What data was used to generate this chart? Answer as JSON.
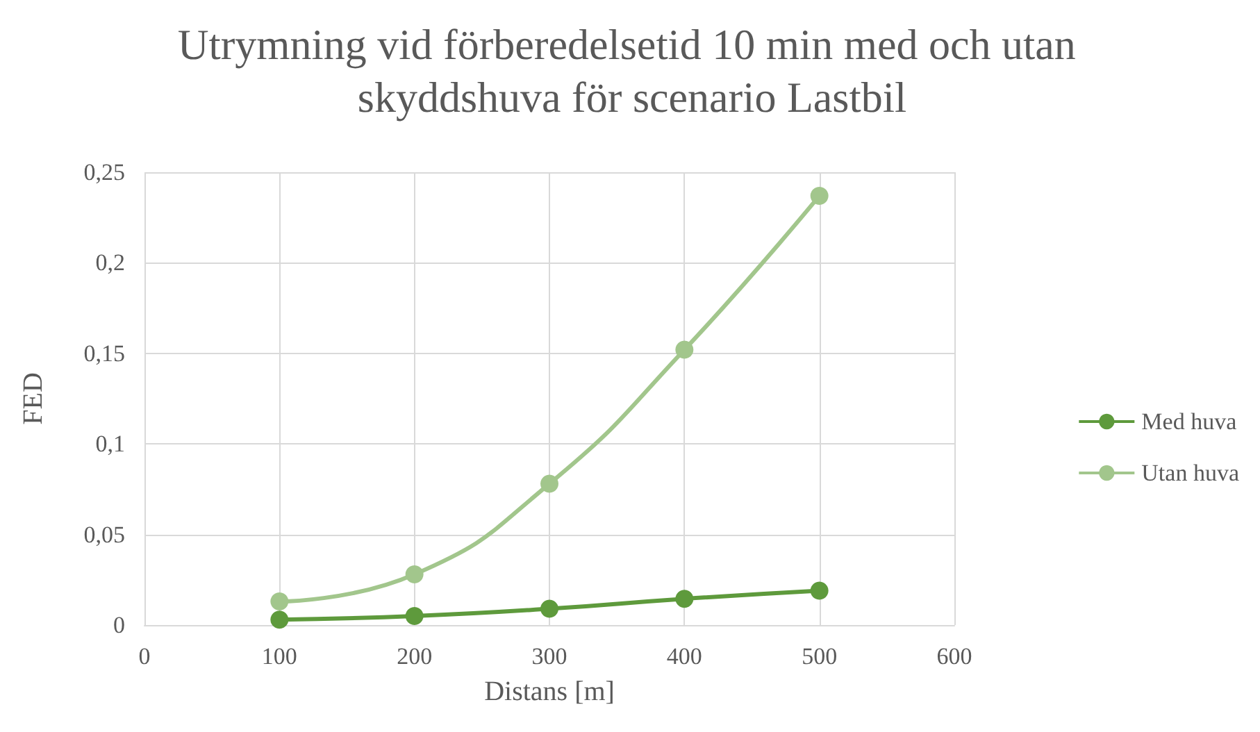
{
  "chart_data": {
    "type": "line",
    "title": "Utrymning vid förberedelsetid 10 min med och utan skyddshuva för scenario Lastbil",
    "xlabel": "Distans [m]",
    "ylabel": "FED",
    "x": [
      100,
      200,
      300,
      400,
      500
    ],
    "series": [
      {
        "name": "Med huva",
        "color": "#5e9a3c",
        "values": [
          0.003,
          0.005,
          0.009,
          0.0145,
          0.019
        ]
      },
      {
        "name": "Utan huva",
        "color": "#a2c68c",
        "values": [
          0.013,
          0.028,
          0.078,
          0.152,
          0.237
        ]
      }
    ],
    "xlim": [
      0,
      600
    ],
    "xticks": [
      0,
      100,
      200,
      300,
      400,
      500,
      600
    ],
    "ylim": [
      0,
      0.25
    ],
    "yticks": [
      0,
      {
        "value": 0.05,
        "label": "0,05"
      },
      {
        "value": 0.1,
        "label": "0,1"
      },
      {
        "value": 0.15,
        "label": "0,15"
      },
      {
        "value": 0.2,
        "label": "0,2"
      },
      {
        "value": 0.25,
        "label": "0,25"
      }
    ],
    "grid": true,
    "legend": "right",
    "marker": "circle",
    "line_style": "solid"
  }
}
